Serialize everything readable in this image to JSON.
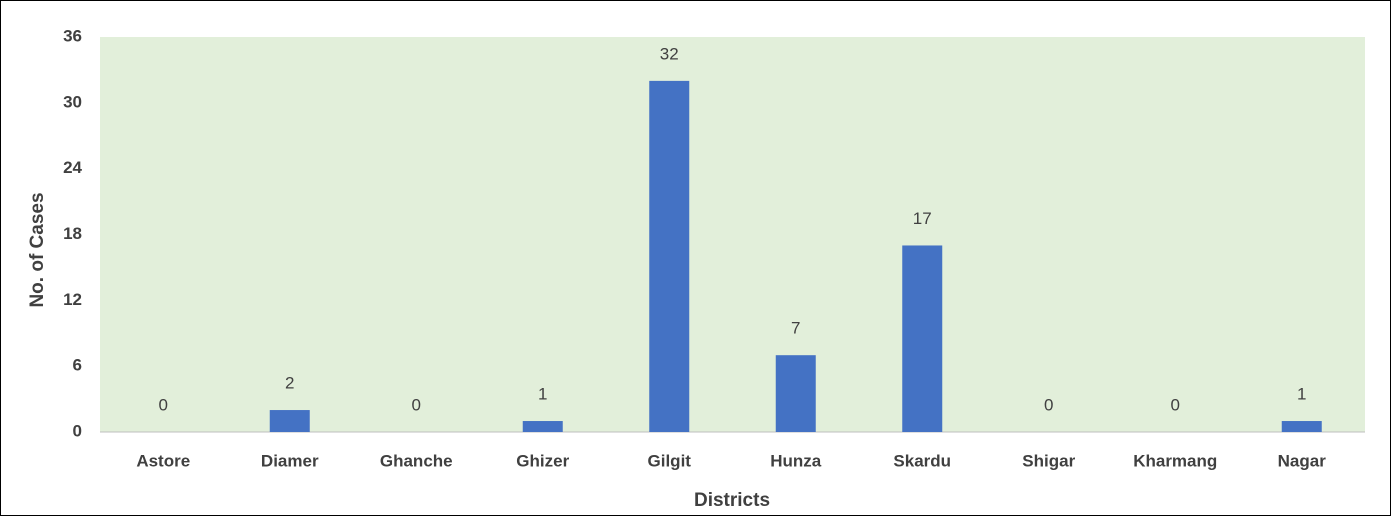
{
  "chart_data": {
    "type": "bar",
    "x_label": "Districts",
    "y_label": "No. of Cases",
    "categories": [
      "Astore",
      "Diamer",
      "Ghanche",
      "Ghizer",
      "Gilgit",
      "Hunza",
      "Skardu",
      "Shigar",
      "Kharmang",
      "Nagar"
    ],
    "values": [
      0,
      2,
      0,
      1,
      32,
      7,
      17,
      0,
      0,
      1
    ],
    "color": "#4472c4",
    "background": "#e2efda",
    "ylim": [
      0,
      36
    ],
    "yticks": [
      0,
      6,
      12,
      18,
      24,
      30,
      36
    ],
    "grid": false
  }
}
